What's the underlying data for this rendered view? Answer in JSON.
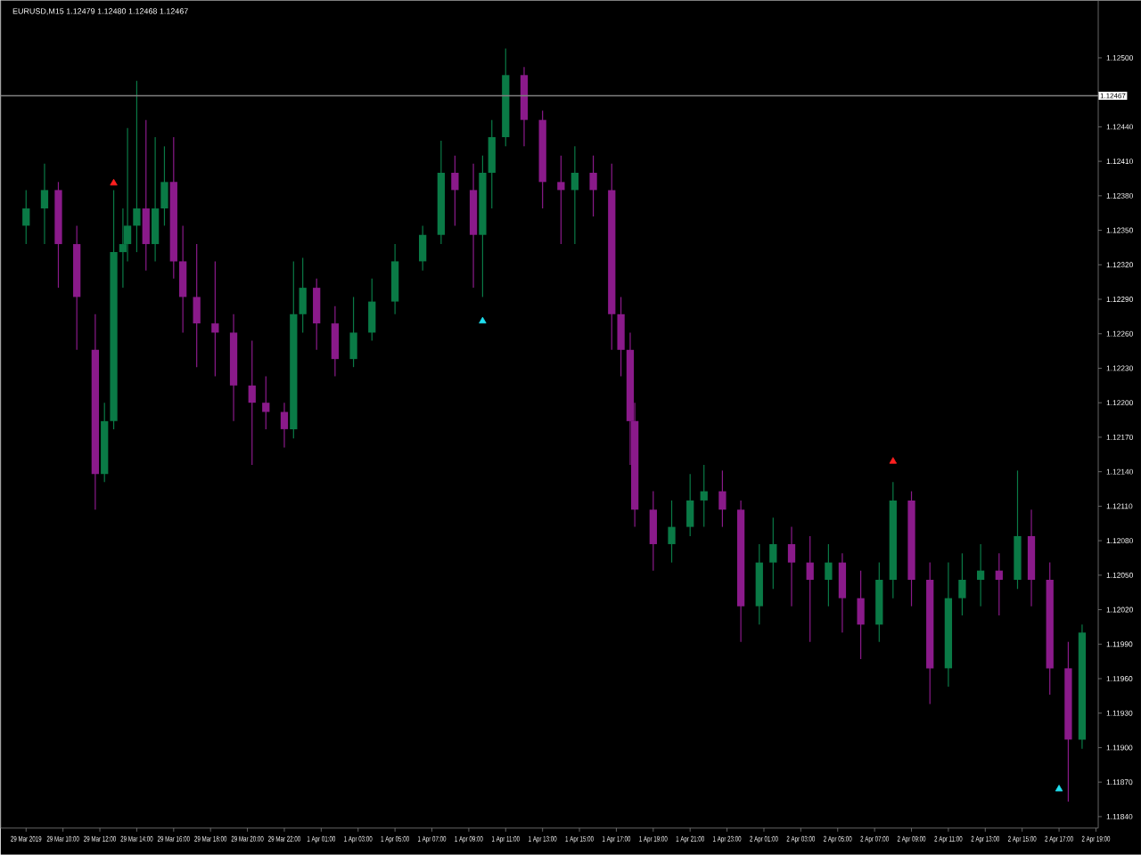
{
  "chart_data": {
    "type": "candlestick",
    "title": "EURUSD,M15  1.12479 1.12480 1.12468 1.12467",
    "categories": [
      "29 Mar 2019",
      null,
      null,
      null,
      null,
      null,
      null,
      null,
      "29 Mar 10:00",
      null,
      null,
      null,
      null,
      null,
      null,
      null,
      "29 Mar 12:00",
      null,
      null,
      null,
      null,
      null,
      null,
      null,
      "29 Mar 14:00",
      null,
      null,
      null,
      null,
      null,
      null,
      null,
      "29 Mar 16:00",
      null,
      null,
      null,
      null,
      null,
      null,
      null,
      "29 Mar 18:00",
      null,
      null,
      null,
      null,
      null,
      null,
      null,
      "29 Mar 20:00",
      null,
      null,
      null,
      null,
      null,
      null,
      null,
      "29 Mar 22:00",
      null,
      null,
      null,
      null,
      null,
      null,
      null,
      "1 Apr 01:00",
      null,
      null,
      null,
      null,
      null,
      null,
      null,
      "1 Apr 03:00",
      null,
      null,
      null,
      null,
      null,
      null,
      null,
      "1 Apr 05:00",
      null,
      null,
      null,
      null,
      null,
      null,
      null,
      "1 Apr 07:00",
      null,
      null,
      null,
      null,
      null,
      null,
      null,
      "1 Apr 09:00",
      null,
      null,
      null,
      null,
      null,
      null,
      null,
      "1 Apr 11:00",
      null,
      null,
      null,
      null,
      null,
      null,
      null,
      "1 Apr 13:00",
      null,
      null,
      null,
      null,
      null,
      null,
      null,
      "1 Apr 15:00",
      null,
      null,
      null,
      null,
      null,
      null,
      null,
      "1 Apr 17:00",
      null,
      null,
      null,
      null,
      null,
      null,
      null,
      "1 Apr 19:00",
      null,
      null,
      null,
      null,
      null,
      null,
      null,
      "1 Apr 21:00",
      null,
      null,
      null,
      null,
      null,
      null,
      null,
      "1 Apr 23:00",
      null,
      null,
      null,
      null,
      null,
      null,
      null,
      "2 Apr 01:00",
      null,
      null,
      null,
      null,
      null,
      null,
      null,
      "2 Apr 03:00",
      null,
      null,
      null,
      null,
      null,
      null,
      null,
      "2 Apr 05:00",
      null,
      null,
      null,
      null,
      null,
      null,
      null,
      "2 Apr 07:00",
      null,
      null,
      null,
      null,
      null,
      null,
      null,
      "2 Apr 09:00",
      null,
      null,
      null,
      null,
      null,
      null,
      null,
      "2 Apr 11:00",
      null,
      null,
      null,
      null,
      null,
      null,
      null,
      "2 Apr 13:00",
      null,
      null,
      null,
      null,
      null,
      null,
      null,
      "2 Apr 15:00",
      null,
      null,
      null,
      null,
      null,
      null,
      null,
      "2 Apr 17:00",
      null,
      null,
      null,
      null,
      null,
      null,
      null,
      "2 Apr 19:00"
    ],
    "ylim": [
      1.1183,
      1.1255
    ],
    "yticks": [
      {
        "value": 1.1184,
        "label": "1.11840"
      },
      {
        "value": 1.1187,
        "label": "1.11870"
      },
      {
        "value": 1.119,
        "label": "1.11900"
      },
      {
        "value": 1.1193,
        "label": "1.11930"
      },
      {
        "value": 1.1196,
        "label": "1.11960"
      },
      {
        "value": 1.1199,
        "label": "1.11990"
      },
      {
        "value": 1.1202,
        "label": "1.12020"
      },
      {
        "value": 1.1205,
        "label": "1.12050"
      },
      {
        "value": 1.1208,
        "label": "1.12080"
      },
      {
        "value": 1.1211,
        "label": "1.12110"
      },
      {
        "value": 1.1214,
        "label": "1.12140"
      },
      {
        "value": 1.1217,
        "label": "1.12170"
      },
      {
        "value": 1.122,
        "label": "1.12200"
      },
      {
        "value": 1.1223,
        "label": "1.12230"
      },
      {
        "value": 1.1226,
        "label": "1.12260"
      },
      {
        "value": 1.1229,
        "label": "1.12290"
      },
      {
        "value": 1.1232,
        "label": "1.12320"
      },
      {
        "value": 1.1235,
        "label": "1.12350"
      },
      {
        "value": 1.1238,
        "label": "1.12380"
      },
      {
        "value": 1.1241,
        "label": "1.12410"
      },
      {
        "value": 1.1244,
        "label": "1.12440"
      },
      {
        "value": 1.1247,
        "label": null
      },
      {
        "value": 1.125,
        "label": "1.12500"
      }
    ],
    "ref_lines": [
      {
        "axis": "y",
        "value": 1.12467,
        "label": "1.12467",
        "color": "#808080"
      }
    ],
    "series": [
      {
        "color": "#0a7a46",
        "ohlc": [
          [
            1.12354,
            1.12385,
            1.12338,
            1.12369
          ],
          null,
          null,
          null,
          [
            1.12369,
            1.12408,
            1.12338,
            1.12385
          ],
          null,
          null,
          null,
          null,
          null,
          null,
          null,
          null,
          null,
          null,
          null,
          null,
          [
            1.12138,
            1.122,
            1.12131,
            1.12184
          ],
          null,
          [
            1.12184,
            1.12385,
            1.12177,
            1.12331
          ],
          null,
          [
            1.12331,
            1.12369,
            1.123,
            1.12338
          ],
          [
            1.12338,
            1.12439,
            1.12323,
            1.12354
          ],
          null,
          [
            1.12354,
            1.1248,
            1.12331,
            1.12369
          ],
          null,
          null,
          null,
          [
            1.12338,
            1.12431,
            1.12323,
            1.12369
          ],
          null,
          [
            1.12369,
            1.12423,
            1.12354,
            1.12392
          ],
          null,
          null,
          null,
          null,
          null,
          null,
          null,
          null,
          null,
          null,
          null,
          null,
          null,
          null,
          null,
          null,
          null,
          null,
          null,
          null,
          null,
          null,
          null,
          null,
          null,
          null,
          null,
          [
            1.12177,
            1.12323,
            1.12169,
            1.12277
          ],
          null,
          [
            1.12277,
            1.12326,
            1.12261,
            1.123
          ],
          null,
          null,
          null,
          null,
          null,
          null,
          null,
          null,
          null,
          null,
          [
            1.12238,
            1.12292,
            1.12231,
            1.12261
          ],
          null,
          null,
          null,
          [
            1.12261,
            1.12308,
            1.12254,
            1.12288
          ],
          null,
          null,
          null,
          null,
          [
            1.12288,
            1.12338,
            1.12277,
            1.12323
          ],
          null,
          null,
          null,
          null,
          null,
          [
            1.12323,
            1.12354,
            1.12315,
            1.12346
          ],
          null,
          null,
          null,
          [
            1.12346,
            1.12428,
            1.12338,
            1.124
          ],
          null,
          null,
          null,
          null,
          null,
          null,
          null,
          null,
          [
            1.12346,
            1.12415,
            1.12292,
            1.124
          ],
          null,
          [
            1.124,
            1.12446,
            1.12369,
            1.12431
          ],
          null,
          null,
          [
            1.12431,
            1.12508,
            1.12423,
            1.12485
          ],
          null,
          null,
          null,
          null,
          null,
          null,
          null,
          null,
          null,
          null,
          null,
          null,
          null,
          null,
          [
            1.12385,
            1.12423,
            1.12338,
            1.124
          ],
          null,
          null,
          null,
          null,
          null,
          null,
          null,
          null,
          null,
          null,
          null,
          null,
          null,
          null,
          null,
          null,
          null,
          null,
          null,
          null,
          [
            1.12077,
            1.12115,
            1.12061,
            1.12092
          ],
          null,
          null,
          null,
          [
            1.12092,
            1.12138,
            1.12084,
            1.12115
          ],
          null,
          null,
          [
            1.12115,
            1.12146,
            1.12092,
            1.12123
          ],
          null,
          null,
          null,
          null,
          null,
          null,
          null,
          null,
          null,
          null,
          null,
          [
            1.12023,
            1.12077,
            1.12007,
            1.12061
          ],
          null,
          null,
          [
            1.12061,
            1.121,
            1.12038,
            1.12077
          ],
          null,
          null,
          null,
          null,
          null,
          null,
          null,
          null,
          null,
          null,
          null,
          [
            1.12046,
            1.12077,
            1.12023,
            1.12061
          ],
          null,
          null,
          null,
          null,
          null,
          null,
          null,
          null,
          null,
          null,
          [
            1.12007,
            1.12061,
            1.11992,
            1.12046
          ],
          null,
          null,
          [
            1.12046,
            1.12131,
            1.1203,
            1.12115
          ],
          null,
          null,
          null,
          null,
          null,
          null,
          null,
          null,
          null,
          null,
          null,
          [
            1.11969,
            1.12061,
            1.11953,
            1.1203
          ],
          null,
          null,
          [
            1.1203,
            1.12069,
            1.12015,
            1.12046
          ],
          null,
          null,
          null,
          [
            1.12046,
            1.12077,
            1.12023,
            1.12054
          ],
          null,
          null,
          null,
          null,
          null,
          null,
          null,
          [
            1.12046,
            1.12141,
            1.12038,
            1.12084
          ],
          null,
          null,
          null,
          null,
          null,
          null,
          null,
          null,
          null,
          null,
          null,
          null,
          null,
          [
            1.11907,
            1.12007,
            1.11899,
            1.12
          ],
          null,
          null,
          null
        ]
      },
      {
        "color": "#8a1a8a",
        "ohlc": [
          null,
          null,
          null,
          null,
          null,
          null,
          null,
          [
            1.12385,
            1.12392,
            1.123,
            1.12338
          ],
          null,
          null,
          null,
          [
            1.12338,
            1.12354,
            1.12246,
            1.12292
          ],
          null,
          null,
          null,
          [
            1.12246,
            1.12277,
            1.12107,
            1.12138
          ],
          null,
          null,
          null,
          null,
          null,
          null,
          null,
          null,
          null,
          null,
          [
            1.12369,
            1.12446,
            1.12315,
            1.12338
          ],
          null,
          null,
          null,
          null,
          null,
          [
            1.12392,
            1.12431,
            1.12308,
            1.12323
          ],
          null,
          [
            1.12323,
            1.12354,
            1.12261,
            1.12292
          ],
          null,
          null,
          [
            1.12292,
            1.12338,
            1.12231,
            1.12269
          ],
          null,
          null,
          null,
          [
            1.12269,
            1.12323,
            1.12223,
            1.12261
          ],
          null,
          null,
          null,
          [
            1.12261,
            1.12277,
            1.12184,
            1.12215
          ],
          null,
          null,
          null,
          [
            1.12215,
            1.12254,
            1.12146,
            1.122
          ],
          null,
          null,
          [
            1.122,
            1.12223,
            1.12177,
            1.12192
          ],
          null,
          null,
          null,
          [
            1.12192,
            1.122,
            1.12161,
            1.12177
          ],
          null,
          null,
          null,
          null,
          null,
          null,
          [
            1.123,
            1.12308,
            1.12246,
            1.12269
          ],
          null,
          null,
          null,
          [
            1.12269,
            1.12284,
            1.12223,
            1.12238
          ],
          null,
          null,
          null,
          null,
          null,
          null,
          null,
          null,
          null,
          null,
          null,
          null,
          null,
          null,
          null,
          null,
          null,
          null,
          null,
          null,
          null,
          null,
          null,
          null,
          null,
          [
            1.124,
            1.12415,
            1.12354,
            1.12385
          ],
          null,
          null,
          null,
          [
            1.12385,
            1.12408,
            1.123,
            1.12346
          ],
          null,
          null,
          null,
          null,
          null,
          null,
          null,
          null,
          null,
          null,
          [
            1.12485,
            1.12492,
            1.12423,
            1.12446
          ],
          null,
          null,
          null,
          [
            1.12446,
            1.12454,
            1.12369,
            1.12392
          ],
          null,
          null,
          null,
          [
            1.12392,
            1.12415,
            1.12338,
            1.12385
          ],
          null,
          null,
          null,
          null,
          null,
          null,
          [
            1.124,
            1.12415,
            1.12362,
            1.12385
          ],
          null,
          null,
          null,
          [
            1.12385,
            1.12408,
            1.12246,
            1.12277
          ],
          null,
          [
            1.12277,
            1.12292,
            1.12223,
            1.12246
          ],
          null,
          [
            1.12246,
            1.12261,
            1.12146,
            1.12184
          ],
          [
            1.12184,
            1.122,
            1.12092,
            1.12107
          ],
          null,
          null,
          null,
          [
            1.12107,
            1.12123,
            1.12054,
            1.12077
          ],
          null,
          null,
          null,
          null,
          null,
          null,
          null,
          null,
          null,
          null,
          null,
          null,
          null,
          null,
          [
            1.12123,
            1.12141,
            1.12092,
            1.12107
          ],
          null,
          null,
          null,
          [
            1.12107,
            1.12115,
            1.11992,
            1.12023
          ],
          null,
          null,
          null,
          null,
          null,
          null,
          null,
          null,
          null,
          null,
          [
            1.12077,
            1.12092,
            1.12023,
            1.12061
          ],
          null,
          null,
          null,
          [
            1.12061,
            1.12084,
            1.11992,
            1.12046
          ],
          null,
          null,
          null,
          null,
          null,
          null,
          [
            1.12061,
            1.12069,
            1.12,
            1.1203
          ],
          null,
          null,
          null,
          [
            1.1203,
            1.12054,
            1.11977,
            1.12007
          ],
          null,
          null,
          null,
          null,
          null,
          null,
          null,
          null,
          null,
          null,
          [
            1.12115,
            1.12123,
            1.12023,
            1.12046
          ],
          null,
          null,
          null,
          [
            1.12046,
            1.12061,
            1.11938,
            1.11969
          ],
          null,
          null,
          null,
          null,
          null,
          null,
          null,
          null,
          null,
          null,
          null,
          null,
          null,
          null,
          [
            1.12054,
            1.12069,
            1.12015,
            1.12046
          ],
          null,
          null,
          null,
          null,
          null,
          null,
          [
            1.12084,
            1.12107,
            1.12023,
            1.12046
          ],
          null,
          null,
          null,
          [
            1.12046,
            1.12061,
            1.11946,
            1.11969
          ],
          null,
          null,
          null,
          [
            1.11969,
            1.11992,
            1.11853,
            1.11907
          ],
          null,
          null,
          null,
          null,
          null,
          null
        ]
      },
      {
        "type": "scatter",
        "color": "#ff2020",
        "marker": "triangle",
        "values": [
          null,
          null,
          null,
          null,
          null,
          null,
          null,
          null,
          null,
          null,
          null,
          null,
          null,
          null,
          null,
          null,
          null,
          null,
          null,
          1.12391,
          null,
          null,
          null,
          null,
          null,
          null,
          null,
          null,
          null,
          null,
          null,
          null,
          null,
          null,
          null,
          null,
          null,
          null,
          null,
          null,
          null,
          null,
          null,
          null,
          null,
          null,
          null,
          null,
          null,
          null,
          null,
          null,
          null,
          null,
          null,
          null,
          null,
          null,
          null,
          null,
          null,
          null,
          null,
          null,
          null,
          null,
          null,
          null,
          null,
          null,
          null,
          null,
          null,
          null,
          null,
          null,
          null,
          null,
          null,
          null,
          null,
          null,
          null,
          null,
          null,
          null,
          null,
          null,
          null,
          null,
          null,
          null,
          null,
          null,
          null,
          null,
          null,
          null,
          null,
          null,
          null,
          null,
          null,
          null,
          null,
          null,
          null,
          null,
          null,
          null,
          null,
          null,
          null,
          null,
          null,
          null,
          null,
          null,
          null,
          null,
          null,
          null,
          null,
          null,
          null,
          null,
          null,
          null,
          null,
          null,
          null,
          null,
          null,
          null,
          null,
          null,
          null,
          null,
          null,
          null,
          null,
          null,
          null,
          null,
          null,
          null,
          null,
          null,
          null,
          null,
          null,
          null,
          null,
          null,
          null,
          null,
          null,
          null,
          null,
          null,
          null,
          null,
          null,
          null,
          null,
          null,
          null,
          null,
          null,
          null,
          null,
          null,
          null,
          null,
          null,
          null,
          null,
          null,
          null,
          null,
          null,
          null,
          null,
          null,
          null,
          null,
          null,
          null,
          1.12149,
          null,
          null,
          null,
          null,
          null,
          null,
          null,
          null,
          null,
          null,
          null,
          null,
          null,
          null,
          null,
          null,
          null,
          null,
          null,
          null,
          null,
          null,
          null,
          null,
          null,
          null,
          null,
          null,
          null,
          null,
          null,
          null,
          null,
          null,
          null,
          null,
          null,
          null,
          null,
          null,
          null,
          null,
          null,
          null
        ]
      },
      {
        "type": "scatter",
        "color": "#20e0f0",
        "marker": "triangle",
        "values": [
          null,
          null,
          null,
          null,
          null,
          null,
          null,
          null,
          null,
          null,
          null,
          null,
          null,
          null,
          null,
          null,
          null,
          null,
          null,
          null,
          null,
          null,
          null,
          null,
          null,
          null,
          null,
          null,
          null,
          null,
          null,
          null,
          null,
          null,
          null,
          null,
          null,
          null,
          null,
          null,
          null,
          null,
          null,
          null,
          null,
          null,
          null,
          null,
          null,
          null,
          null,
          null,
          null,
          null,
          null,
          null,
          null,
          null,
          null,
          null,
          null,
          null,
          null,
          null,
          null,
          null,
          null,
          null,
          null,
          null,
          null,
          null,
          null,
          null,
          null,
          null,
          null,
          null,
          null,
          null,
          null,
          null,
          null,
          null,
          null,
          null,
          null,
          null,
          null,
          null,
          null,
          null,
          null,
          null,
          null,
          null,
          null,
          null,
          null,
          1.12271,
          null,
          null,
          null,
          null,
          null,
          null,
          null,
          null,
          null,
          null,
          null,
          null,
          null,
          null,
          null,
          null,
          null,
          null,
          null,
          null,
          null,
          null,
          null,
          null,
          null,
          null,
          null,
          null,
          null,
          null,
          null,
          null,
          null,
          null,
          null,
          null,
          null,
          null,
          null,
          null,
          null,
          null,
          null,
          null,
          null,
          null,
          null,
          null,
          null,
          null,
          null,
          null,
          null,
          null,
          null,
          null,
          null,
          null,
          null,
          null,
          null,
          null,
          null,
          null,
          null,
          null,
          null,
          null,
          null,
          null,
          null,
          null,
          null,
          null,
          null,
          null,
          null,
          null,
          null,
          null,
          null,
          null,
          null,
          null,
          null,
          null,
          null,
          null,
          null,
          null,
          null,
          null,
          null,
          null,
          null,
          null,
          null,
          null,
          null,
          null,
          null,
          null,
          null,
          null,
          null,
          null,
          null,
          null,
          null,
          null,
          null,
          null,
          null,
          null,
          null,
          null,
          null,
          null,
          null,
          null,
          null,
          null,
          null,
          null,
          1.11864,
          null,
          null,
          null,
          null,
          null,
          null,
          null,
          null
        ]
      }
    ]
  }
}
